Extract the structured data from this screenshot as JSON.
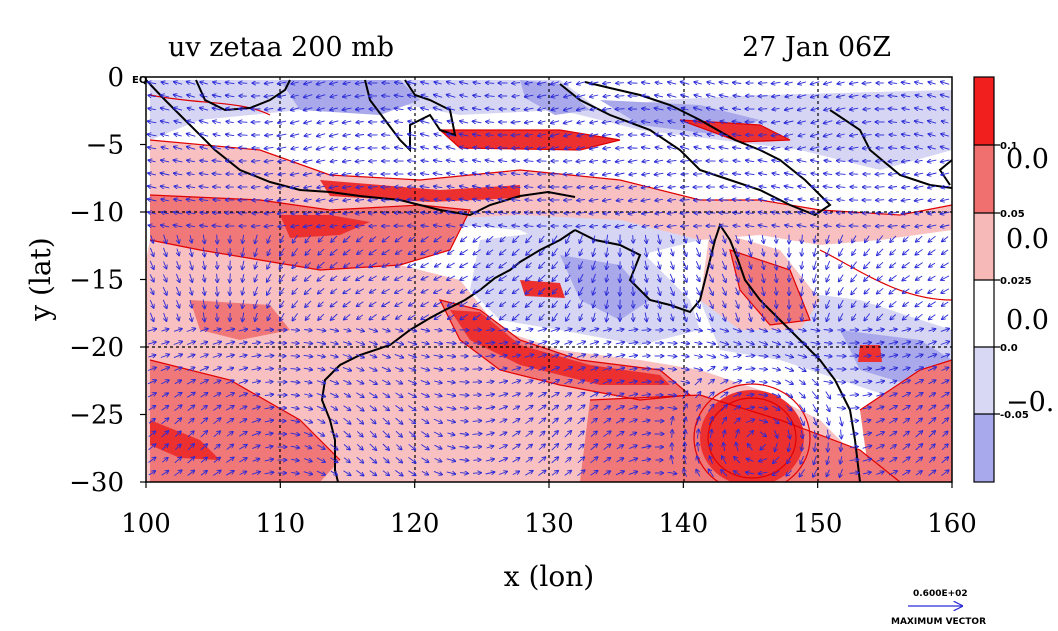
{
  "chart_data": {
    "type": "heatmap",
    "title": "uv zetaa 200 mb",
    "time_label": "27 Jan 06Z",
    "xlabel": "x (lon)",
    "ylabel": "y (lat)",
    "xlim": [
      100,
      160
    ],
    "ylim": [
      -30,
      0
    ],
    "x_ticks": [
      "100",
      "110",
      "120",
      "130",
      "140",
      "150",
      "160"
    ],
    "y_ticks": [
      "0",
      "−5",
      "−10",
      "−15",
      "−20",
      "−25",
      "−30"
    ],
    "y_tick_values": [
      0,
      -5,
      -10,
      -15,
      -20,
      -25,
      -30
    ],
    "x_tick_values": [
      100,
      110,
      120,
      130,
      140,
      150,
      160
    ],
    "eq_label": "EQ",
    "grid": true,
    "colorbar": {
      "levels_small": [
        "0.1",
        "0.05",
        "0.025",
        "0.0",
        "-0.05"
      ],
      "levels_big": [
        "0.0",
        "0.0",
        "0.0",
        "−0."
      ],
      "colors": [
        "#f21f1f",
        "#f07070",
        "#f7b8b8",
        "#ffffff",
        "#d8d8f5",
        "#a8a8ec"
      ]
    },
    "reference_vector": {
      "value": "0.600E+02",
      "label": "MAXIMUM VECTOR"
    },
    "colors": {
      "strong_pos": "#f03030",
      "pos": "#f07878",
      "weak_pos": "#f8c0c0",
      "neutral": "#ffffff",
      "weak_neg": "#d6d6f4",
      "neg": "#a8a8ea",
      "vector": "#2a2ad8",
      "contour": "#e00000",
      "coast": "#000000"
    },
    "features": [
      {
        "name": "anticyclone-core",
        "lon": 145.5,
        "lat": -27
      },
      {
        "name": "subtropical-jet-band",
        "lat_range": [
          -13,
          -10
        ]
      },
      {
        "name": "australian-coast"
      }
    ]
  }
}
